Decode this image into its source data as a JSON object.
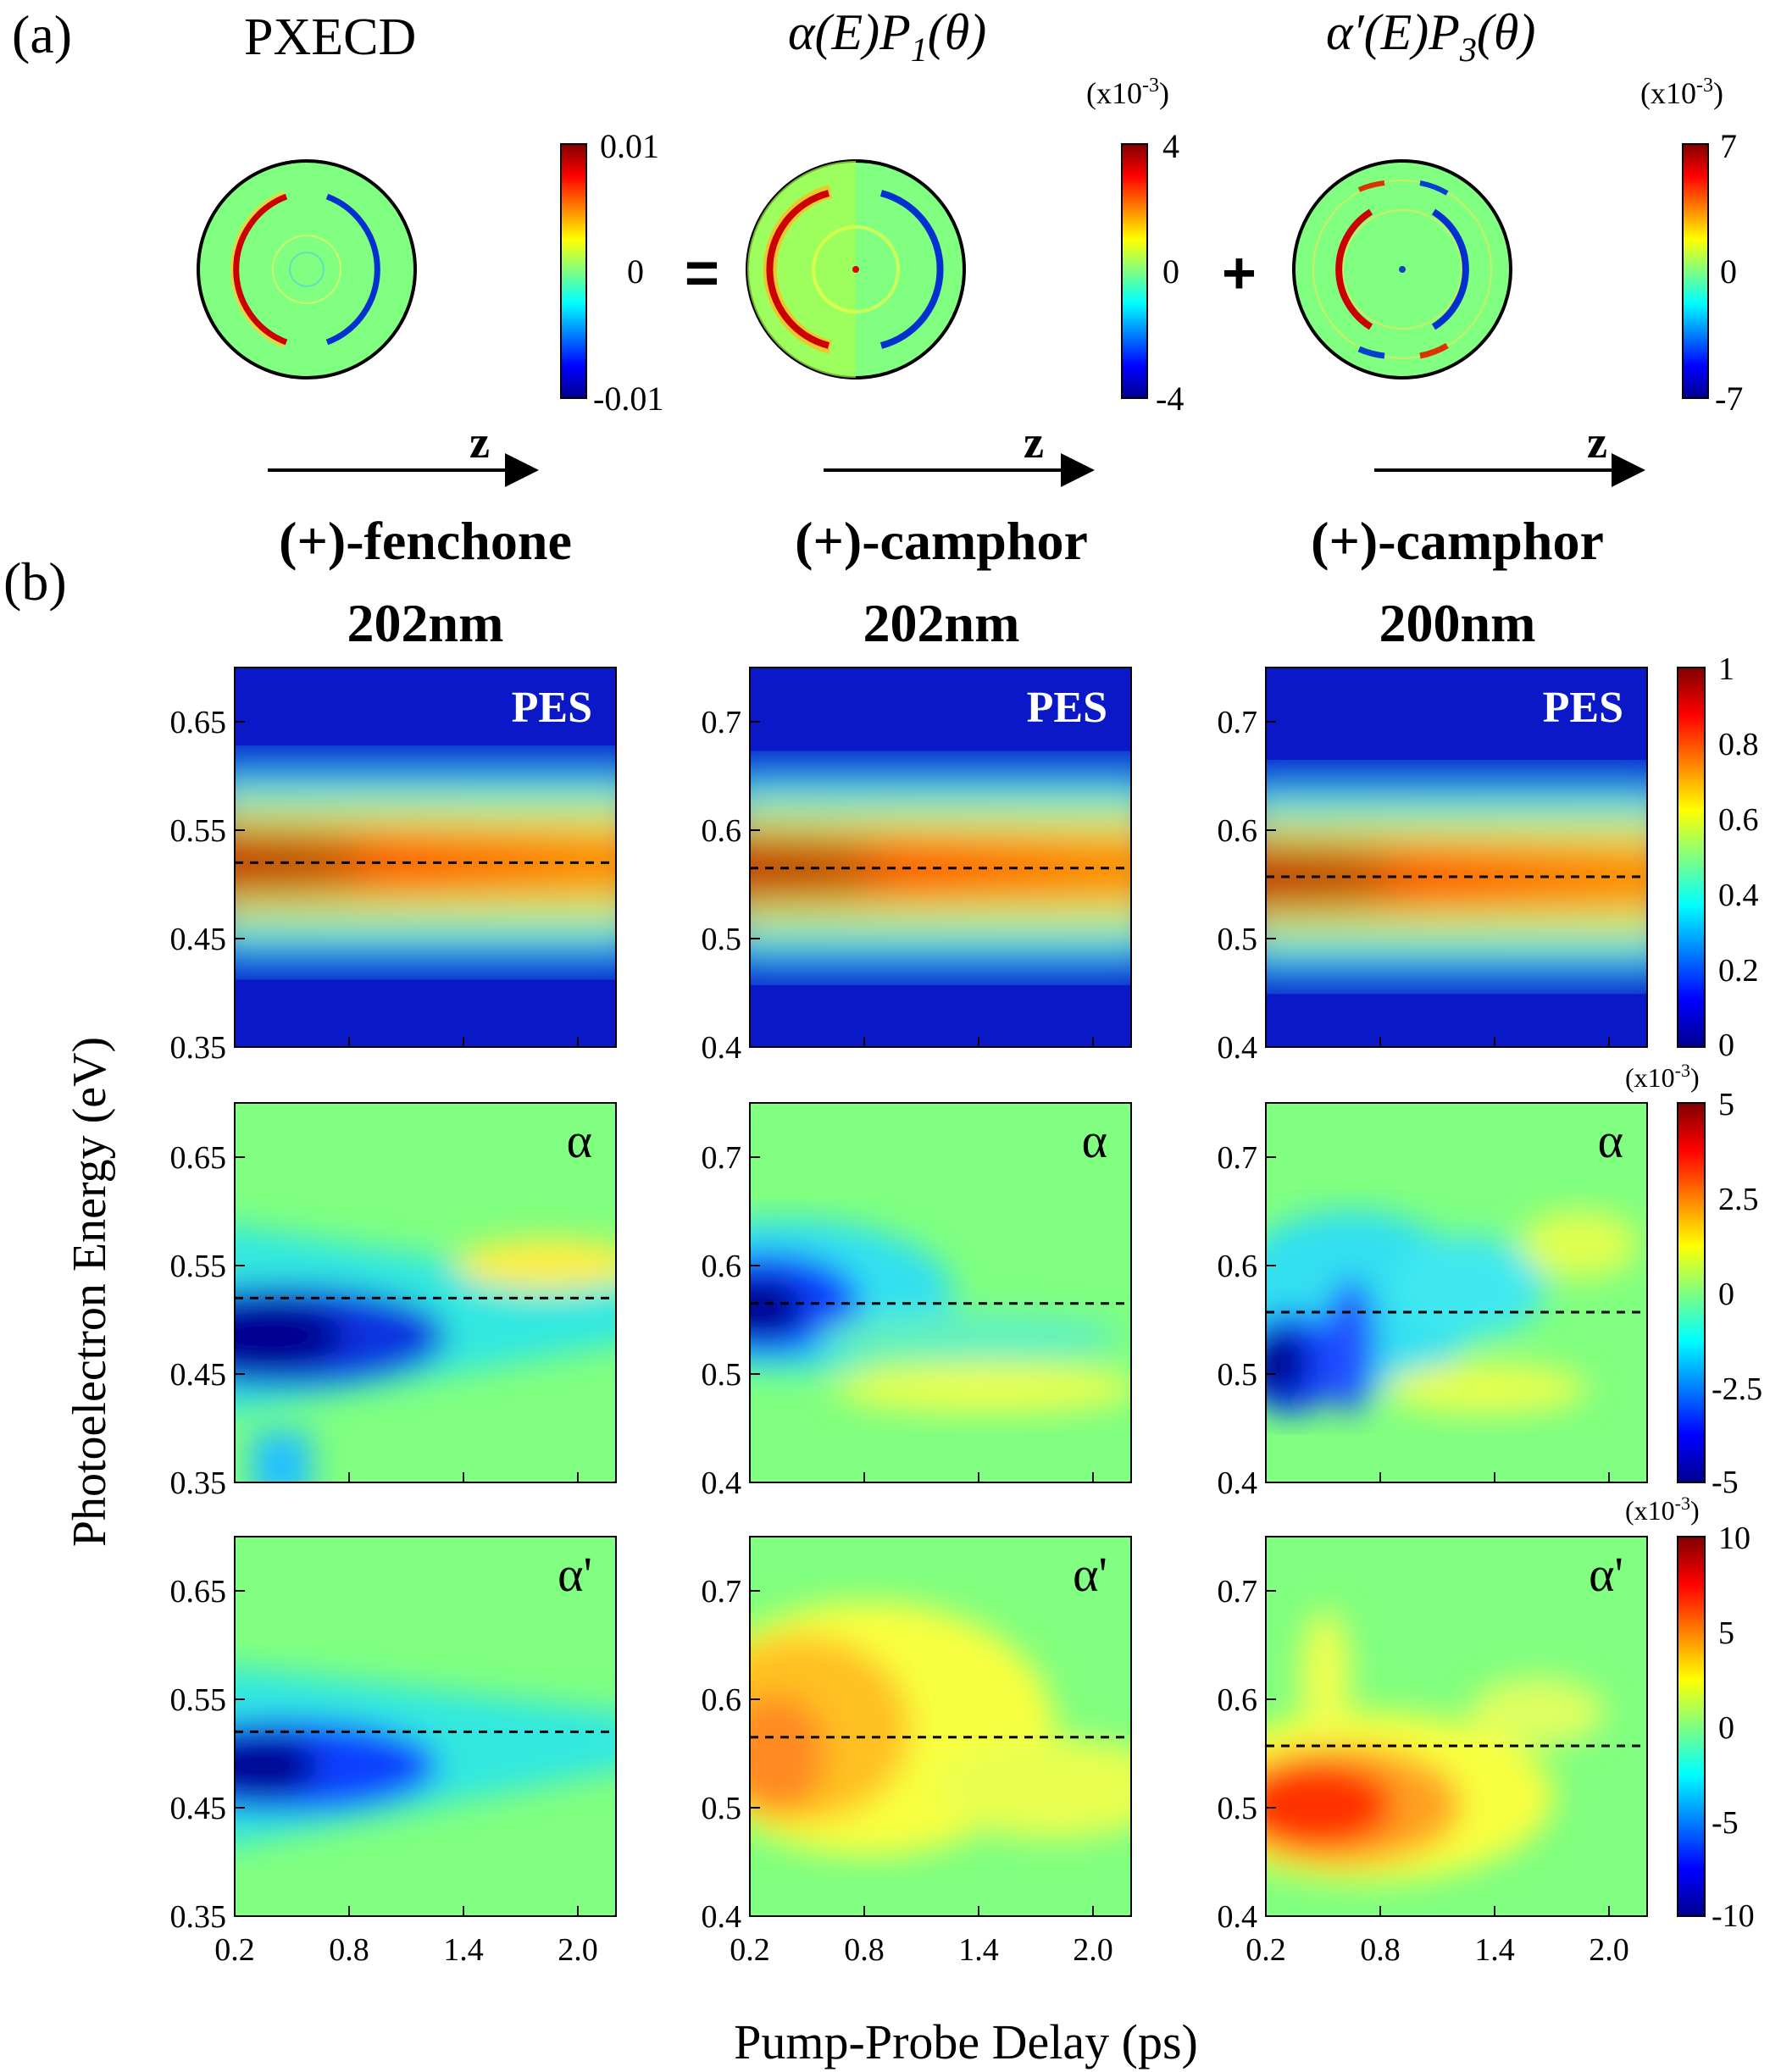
{
  "panel_labels": {
    "a": "(a)",
    "b": "(b)"
  },
  "panel_a": {
    "titles": [
      "PXECD",
      "α(E)P",
      "α′(E)P"
    ],
    "title_subscripts": [
      "",
      "1",
      "3"
    ],
    "title_arg": "(θ)",
    "operators": [
      "=",
      "+"
    ],
    "axis_label": "z",
    "colorbars": [
      {
        "scale": "",
        "ticks": [
          "0.01",
          "0",
          "-0.01"
        ]
      },
      {
        "scale": "(x10",
        "scale_exp": "-3",
        "scale_close": ")",
        "ticks": [
          "4",
          "0",
          "-4"
        ]
      },
      {
        "scale": "(x10",
        "scale_exp": "-3",
        "scale_close": ")",
        "ticks": [
          "7",
          "0",
          "-7"
        ]
      }
    ]
  },
  "panel_b": {
    "columns": [
      {
        "line1": "(+)-fenchone",
        "line2": "202nm"
      },
      {
        "line1": "(+)-camphor",
        "line2": "202nm"
      },
      {
        "line1": "(+)-camphor",
        "line2": "200nm"
      }
    ],
    "row_labels": [
      "PES",
      "α",
      "α'"
    ],
    "y_ticks": [
      [
        "0.65",
        "0.55",
        "0.45",
        "0.35"
      ],
      [
        "0.7",
        "0.6",
        "0.5",
        "0.4"
      ],
      [
        "0.7",
        "0.6",
        "0.5",
        "0.4"
      ]
    ],
    "x_ticks": [
      "0.2",
      "0.8",
      "1.4",
      "2.0"
    ],
    "ylabel": "Photoelectron Energy (eV)",
    "xlabel": "Pump-Probe Delay (ps)",
    "colorbars": [
      {
        "scale": "",
        "ticks": [
          "1",
          "0.8",
          "0.6",
          "0.4",
          "0.2",
          "0"
        ]
      },
      {
        "scale": "(x10",
        "scale_exp": "-3",
        "scale_close": ")",
        "ticks": [
          "5",
          "2.5",
          "0",
          "-2.5",
          "-5"
        ]
      },
      {
        "scale": "(x10",
        "scale_exp": "-3",
        "scale_close": ")",
        "ticks": [
          "10",
          "5",
          "0",
          "-5",
          "-10"
        ]
      }
    ]
  },
  "chart_data": {
    "type": "heatmap",
    "colormap": "jet",
    "x": [
      0.2,
      0.8,
      1.4,
      2.0
    ],
    "xlim": [
      0.2,
      2.2
    ],
    "ylims": [
      [
        0.35,
        0.7
      ],
      [
        0.4,
        0.75
      ],
      [
        0.4,
        0.75
      ]
    ],
    "dashed_line_energy": [
      0.52,
      0.565,
      0.557
    ],
    "rows": [
      {
        "label": "PES",
        "clim": [
          0,
          1
        ]
      },
      {
        "label": "α",
        "clim": [
          -5,
          5
        ]
      },
      {
        "label": "α'",
        "clim": [
          -10,
          10
        ]
      }
    ]
  }
}
